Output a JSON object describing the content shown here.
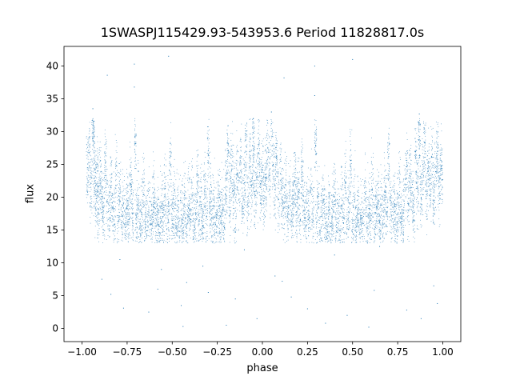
{
  "chart_data": {
    "type": "scatter",
    "title": "1SWASPJ115429.93-543953.6 Period 11828817.0s",
    "xlabel": "phase",
    "ylabel": "flux",
    "xlim": [
      -1.1,
      1.1
    ],
    "ylim": [
      -2,
      43
    ],
    "xticks": [
      -1.0,
      -0.75,
      -0.5,
      -0.25,
      0.0,
      0.25,
      0.5,
      0.75,
      1.0
    ],
    "xtick_labels": [
      "−1.00",
      "−0.75",
      "−0.50",
      "−0.25",
      "0.00",
      "0.25",
      "0.50",
      "0.75",
      "1.00"
    ],
    "yticks": [
      0,
      5,
      10,
      15,
      20,
      25,
      30,
      35,
      40
    ],
    "ytick_labels": [
      "0",
      "5",
      "10",
      "15",
      "20",
      "25",
      "30",
      "35",
      "40"
    ],
    "grid": false,
    "marker_color": "#1f77b4",
    "series": [
      {
        "phase_fold": 1.0,
        "points": [
          [
            -0.97,
            24.5
          ],
          [
            -0.96,
            26.8
          ],
          [
            -0.95,
            22.1
          ],
          [
            -0.94,
            31.0
          ],
          [
            -0.935,
            28.5
          ],
          [
            -0.93,
            21.4
          ],
          [
            -0.92,
            19.8
          ],
          [
            -0.915,
            24.0
          ],
          [
            -0.91,
            18.2
          ],
          [
            -0.9,
            22.6
          ],
          [
            -0.89,
            20.1
          ],
          [
            -0.88,
            17.9
          ],
          [
            -0.87,
            25.3
          ],
          [
            -0.86,
            19.4
          ],
          [
            -0.85,
            16.8
          ],
          [
            -0.84,
            21.7
          ],
          [
            -0.83,
            18.5
          ],
          [
            -0.82,
            15.9
          ],
          [
            -0.81,
            23.4
          ],
          [
            -0.8,
            17.2
          ],
          [
            -0.79,
            20.6
          ],
          [
            -0.78,
            16.1
          ],
          [
            -0.77,
            19.0
          ],
          [
            -0.76,
            15.4
          ],
          [
            -0.75,
            18.3
          ],
          [
            -0.74,
            16.6
          ],
          [
            -0.73,
            22.0
          ],
          [
            -0.72,
            17.5
          ],
          [
            -0.71,
            36.8
          ],
          [
            -0.705,
            28.2
          ],
          [
            -0.7,
            16.0
          ],
          [
            -0.69,
            18.8
          ],
          [
            -0.68,
            15.2
          ],
          [
            -0.67,
            17.7
          ],
          [
            -0.66,
            20.4
          ],
          [
            -0.65,
            16.3
          ],
          [
            -0.64,
            14.9
          ],
          [
            -0.63,
            18.1
          ],
          [
            -0.62,
            15.8
          ],
          [
            -0.61,
            17.0
          ],
          [
            -0.6,
            19.5
          ],
          [
            -0.59,
            15.5
          ],
          [
            -0.58,
            16.9
          ],
          [
            -0.57,
            14.6
          ],
          [
            -0.56,
            18.6
          ],
          [
            -0.55,
            16.2
          ],
          [
            -0.54,
            21.3
          ],
          [
            -0.53,
            15.1
          ],
          [
            -0.52,
            17.8
          ],
          [
            -0.51,
            24.9
          ],
          [
            -0.5,
            16.5
          ],
          [
            -0.49,
            19.2
          ],
          [
            -0.48,
            15.7
          ],
          [
            -0.47,
            18.0
          ],
          [
            -0.46,
            14.8
          ],
          [
            -0.45,
            17.3
          ],
          [
            -0.44,
            16.0
          ],
          [
            -0.43,
            19.9
          ],
          [
            -0.42,
            15.3
          ],
          [
            -0.41,
            18.4
          ],
          [
            -0.4,
            16.7
          ],
          [
            -0.39,
            20.2
          ],
          [
            -0.38,
            15.0
          ],
          [
            -0.37,
            17.6
          ],
          [
            -0.36,
            22.4
          ],
          [
            -0.35,
            16.4
          ],
          [
            -0.34,
            18.9
          ],
          [
            -0.33,
            15.6
          ],
          [
            -0.32,
            21.0
          ],
          [
            -0.31,
            17.1
          ],
          [
            -0.3,
            26.5
          ],
          [
            -0.29,
            19.3
          ],
          [
            -0.28,
            16.8
          ],
          [
            -0.27,
            18.7
          ],
          [
            -0.26,
            15.9
          ],
          [
            -0.25,
            17.4
          ],
          [
            -0.24,
            20.0
          ],
          [
            -0.23,
            16.1
          ],
          [
            -0.22,
            18.2
          ],
          [
            -0.21,
            15.4
          ],
          [
            -0.2,
            22.8
          ],
          [
            -0.19,
            27.1
          ],
          [
            -0.18,
            19.6
          ],
          [
            -0.17,
            24.3
          ],
          [
            -0.16,
            21.1
          ],
          [
            -0.15,
            17.9
          ],
          [
            -0.14,
            23.7
          ],
          [
            -0.13,
            20.5
          ],
          [
            -0.12,
            26.0
          ],
          [
            -0.11,
            18.6
          ],
          [
            -0.1,
            22.2
          ],
          [
            -0.09,
            27.8
          ],
          [
            -0.08,
            19.1
          ],
          [
            -0.07,
            24.6
          ],
          [
            -0.06,
            21.8
          ],
          [
            -0.05,
            25.4
          ],
          [
            -0.04,
            20.3
          ],
          [
            -0.03,
            23.1
          ],
          [
            -0.02,
            26.7
          ],
          [
            -0.01,
            21.5
          ],
          [
            0.0,
            24.2
          ],
          [
            0.01,
            19.8
          ],
          [
            0.02,
            22.9
          ],
          [
            0.03,
            27.5
          ],
          [
            0.04,
            23.3
          ],
          [
            0.05,
            31.2
          ],
          [
            0.06,
            25.0
          ],
          [
            0.07,
            21.2
          ],
          [
            0.08,
            26.3
          ],
          [
            0.09,
            19.7
          ],
          [
            0.1,
            23.6
          ],
          [
            0.11,
            20.0
          ],
          [
            0.12,
            18.4
          ],
          [
            0.13,
            21.9
          ],
          [
            0.14,
            17.0
          ],
          [
            0.15,
            20.7
          ],
          [
            0.16,
            16.3
          ],
          [
            0.17,
            19.4
          ],
          [
            0.18,
            22.5
          ],
          [
            0.19,
            17.8
          ],
          [
            0.2,
            20.9
          ],
          [
            0.21,
            16.6
          ],
          [
            0.22,
            23.8
          ],
          [
            0.23,
            18.0
          ],
          [
            0.24,
            15.7
          ],
          [
            0.25,
            19.1
          ],
          [
            0.26,
            16.9
          ],
          [
            0.27,
            21.4
          ],
          [
            0.28,
            17.5
          ],
          [
            0.29,
            35.5
          ],
          [
            0.295,
            27.9
          ],
          [
            0.3,
            16.2
          ],
          [
            0.31,
            18.5
          ],
          [
            0.32,
            15.0
          ],
          [
            0.33,
            17.3
          ],
          [
            0.34,
            19.6
          ],
          [
            0.35,
            16.0
          ],
          [
            0.36,
            14.7
          ],
          [
            0.37,
            18.2
          ],
          [
            0.38,
            15.5
          ],
          [
            0.39,
            17.0
          ],
          [
            0.4,
            20.1
          ],
          [
            0.41,
            15.8
          ],
          [
            0.42,
            16.8
          ],
          [
            0.43,
            14.9
          ],
          [
            0.44,
            18.7
          ],
          [
            0.45,
            16.1
          ],
          [
            0.46,
            22.3
          ],
          [
            0.47,
            15.2
          ],
          [
            0.48,
            17.7
          ],
          [
            0.49,
            25.6
          ],
          [
            0.5,
            16.4
          ],
          [
            0.51,
            19.3
          ],
          [
            0.52,
            15.6
          ],
          [
            0.53,
            17.9
          ],
          [
            0.54,
            14.6
          ],
          [
            0.55,
            17.2
          ],
          [
            0.56,
            16.0
          ],
          [
            0.57,
            20.5
          ],
          [
            0.58,
            15.3
          ],
          [
            0.59,
            18.3
          ],
          [
            0.6,
            16.5
          ],
          [
            0.61,
            21.1
          ],
          [
            0.62,
            15.1
          ],
          [
            0.63,
            17.6
          ],
          [
            0.64,
            19.0
          ],
          [
            0.65,
            16.2
          ],
          [
            0.66,
            18.8
          ],
          [
            0.67,
            15.9
          ],
          [
            0.68,
            20.8
          ],
          [
            0.69,
            17.4
          ],
          [
            0.7,
            26.2
          ],
          [
            0.71,
            19.5
          ],
          [
            0.72,
            16.7
          ],
          [
            0.73,
            18.6
          ],
          [
            0.74,
            15.8
          ],
          [
            0.75,
            17.5
          ],
          [
            0.76,
            20.3
          ],
          [
            0.77,
            16.3
          ],
          [
            0.78,
            18.1
          ],
          [
            0.79,
            22.0
          ],
          [
            0.8,
            24.7
          ],
          [
            0.81,
            19.0
          ],
          [
            0.82,
            23.2
          ],
          [
            0.83,
            20.6
          ],
          [
            0.84,
            17.7
          ],
          [
            0.85,
            25.9
          ],
          [
            0.86,
            21.3
          ],
          [
            0.87,
            27.4
          ],
          [
            0.88,
            19.9
          ],
          [
            0.89,
            23.5
          ],
          [
            0.9,
            28.3
          ],
          [
            0.91,
            20.4
          ],
          [
            0.92,
            24.8
          ],
          [
            0.93,
            22.1
          ],
          [
            0.94,
            26.1
          ],
          [
            0.95,
            20.2
          ],
          [
            0.96,
            23.9
          ],
          [
            0.97,
            27.0
          ],
          [
            0.98,
            21.6
          ],
          [
            0.99,
            24.4
          ],
          [
            1.0,
            22.7
          ],
          [
            -0.71,
            40.3
          ],
          [
            -0.52,
            41.5
          ],
          [
            0.29,
            40.0
          ],
          [
            0.5,
            41.0
          ],
          [
            -0.94,
            33.5
          ],
          [
            0.05,
            33.0
          ],
          [
            0.87,
            32.7
          ],
          [
            -0.86,
            38.6
          ],
          [
            0.12,
            38.2
          ],
          [
            -0.05,
            32.0
          ],
          [
            -0.89,
            7.5
          ],
          [
            -0.84,
            5.2
          ],
          [
            -0.77,
            3.1
          ],
          [
            -0.63,
            2.5
          ],
          [
            -0.58,
            6.0
          ],
          [
            -0.56,
            9.0
          ],
          [
            -0.45,
            3.5
          ],
          [
            -0.42,
            7.0
          ],
          [
            -0.44,
            0.3
          ],
          [
            -0.33,
            9.5
          ],
          [
            -0.3,
            5.5
          ],
          [
            -0.2,
            0.5
          ],
          [
            -0.15,
            4.5
          ],
          [
            -0.1,
            12.0
          ],
          [
            -0.03,
            1.5
          ],
          [
            0.07,
            8.0
          ],
          [
            0.11,
            7.2
          ],
          [
            0.16,
            4.8
          ],
          [
            0.25,
            3.0
          ],
          [
            0.35,
            0.8
          ],
          [
            0.47,
            2.0
          ],
          [
            0.59,
            0.2
          ],
          [
            0.62,
            5.8
          ],
          [
            0.65,
            12.5
          ],
          [
            0.8,
            2.8
          ],
          [
            0.88,
            1.5
          ],
          [
            0.95,
            6.5
          ],
          [
            0.97,
            3.8
          ],
          [
            -0.79,
            10.5
          ],
          [
            0.4,
            11.2
          ]
        ]
      }
    ]
  }
}
